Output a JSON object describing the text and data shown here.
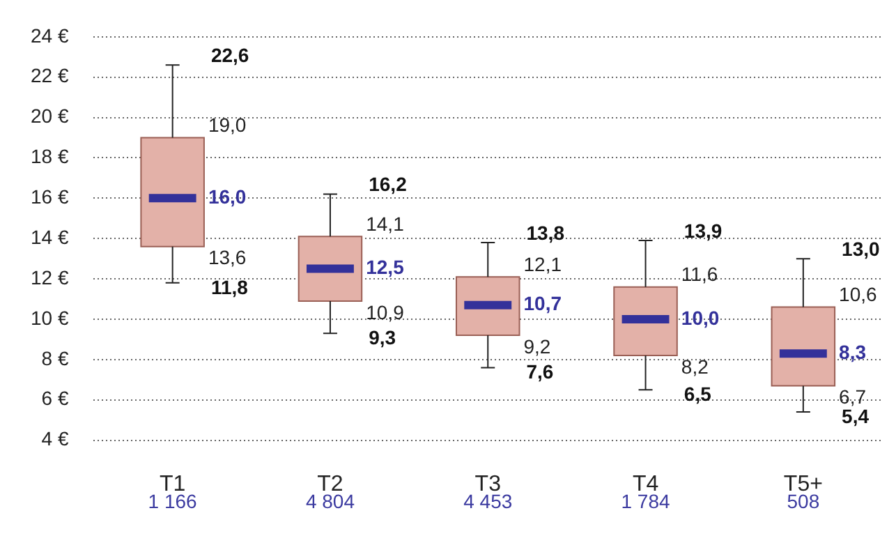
{
  "chart_data": {
    "type": "box",
    "categories": [
      "T1",
      "T2",
      "T3",
      "T4",
      "T5+"
    ],
    "series": [
      {
        "color": "#e3b1a8",
        "boxes": [
          {
            "low": 11.8,
            "q1": 13.6,
            "median": 16.0,
            "q3": 19.0,
            "high": 22.6
          },
          {
            "low": 9.3,
            "q1": 10.9,
            "median": 12.5,
            "q3": 14.1,
            "high": 16.2
          },
          {
            "low": 7.6,
            "q1": 9.2,
            "median": 10.7,
            "q3": 12.1,
            "high": 13.8
          },
          {
            "low": 6.5,
            "q1": 8.2,
            "median": 10.0,
            "q3": 11.6,
            "high": 13.9
          },
          {
            "low": 5.4,
            "q1": 6.7,
            "median": 8.3,
            "q3": 10.6,
            "high": 13.0
          }
        ]
      }
    ],
    "ylim": [
      4,
      24
    ],
    "yticks": [
      {
        "value": 4,
        "label": "4 €"
      },
      {
        "value": 6,
        "label": "6 €"
      },
      {
        "value": 8,
        "label": "8 €"
      },
      {
        "value": 10,
        "label": "10 €"
      },
      {
        "value": 12,
        "label": "12 €"
      },
      {
        "value": 14,
        "label": "14 €"
      },
      {
        "value": 16,
        "label": "16 €"
      },
      {
        "value": 18,
        "label": "18 €"
      },
      {
        "value": 20,
        "label": "20 €"
      },
      {
        "value": 22,
        "label": "22 €"
      },
      {
        "value": 24,
        "label": "24 €"
      }
    ],
    "grid": "y",
    "annotations": [
      "1 166",
      "4 804",
      "4 453",
      "1 784",
      "508",
      {
        "text": "22,6",
        "x": "T1",
        "y": 22.6
      },
      {
        "text": "19,0",
        "x": "T1",
        "y": 19.0
      },
      {
        "text": "16,0",
        "x": "T1",
        "y": 16.0
      },
      {
        "text": "13,6",
        "x": "T1",
        "y": 13.6
      },
      {
        "text": "11,8",
        "x": "T1",
        "y": 11.8
      },
      {
        "text": "16,2",
        "x": "T2",
        "y": 16.2
      },
      {
        "text": "14,1",
        "x": "T2",
        "y": 14.1
      },
      {
        "text": "12,5",
        "x": "T2",
        "y": 12.5
      },
      {
        "text": "10,9",
        "x": "T2",
        "y": 10.9
      },
      {
        "text": "9,3",
        "x": "T2",
        "y": 9.3
      },
      {
        "text": "13,8",
        "x": "T3",
        "y": 13.8
      },
      {
        "text": "12,1",
        "x": "T3",
        "y": 12.1
      },
      {
        "text": "10,7",
        "x": "T3",
        "y": 10.7
      },
      {
        "text": "9,2",
        "x": "T3",
        "y": 9.2
      },
      {
        "text": "7,6",
        "x": "T3",
        "y": 7.6
      },
      {
        "text": "13,9",
        "x": "T4",
        "y": 13.9
      },
      {
        "text": "11,6",
        "x": "T4",
        "y": 11.6
      },
      {
        "text": "10,0",
        "x": "T4",
        "y": 10.0
      },
      {
        "text": "8,2",
        "x": "T4",
        "y": 8.2
      },
      {
        "text": "6,5",
        "x": "T4",
        "y": 6.5
      },
      {
        "text": "13,0",
        "x": "T5+",
        "y": 13.0
      },
      {
        "text": "10,6",
        "x": "T5+",
        "y": 10.6
      },
      {
        "text": "8,3",
        "x": "T5+",
        "y": 8.3
      },
      {
        "text": "6,7",
        "x": "T5+",
        "y": 6.7
      },
      {
        "text": "5,4",
        "x": "T5+",
        "y": 5.4
      }
    ]
  }
}
